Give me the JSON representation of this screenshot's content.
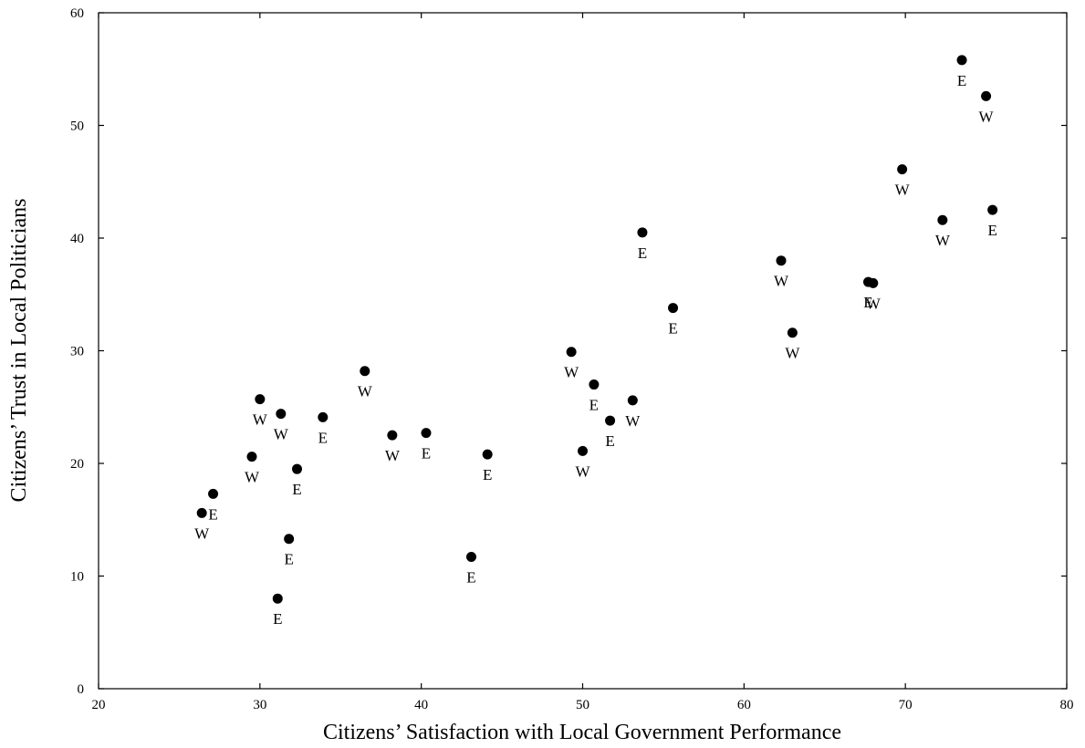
{
  "chart_data": {
    "type": "scatter",
    "title": "",
    "xlabel": "Citizens’ Satisfaction with Local Government Performance",
    "ylabel": "Citizens’ Trust in Local Politicians",
    "xlim": [
      20,
      80
    ],
    "ylim": [
      0,
      60
    ],
    "xticks": [
      "20",
      "30",
      "40",
      "50",
      "60",
      "70",
      "80"
    ],
    "yticks": [
      "0",
      "10",
      "20",
      "30",
      "40",
      "50",
      "60"
    ],
    "grid": false,
    "marker_color": "#000000",
    "points": [
      {
        "x": 26.4,
        "y": 15.6,
        "label": "W"
      },
      {
        "x": 27.1,
        "y": 17.3,
        "label": "E"
      },
      {
        "x": 29.5,
        "y": 20.6,
        "label": "W"
      },
      {
        "x": 30.0,
        "y": 25.7,
        "label": "W"
      },
      {
        "x": 31.1,
        "y": 8.0,
        "label": "E"
      },
      {
        "x": 31.3,
        "y": 24.4,
        "label": "W"
      },
      {
        "x": 31.8,
        "y": 13.3,
        "label": "E"
      },
      {
        "x": 32.3,
        "y": 19.5,
        "label": "E"
      },
      {
        "x": 33.9,
        "y": 24.1,
        "label": "E"
      },
      {
        "x": 36.5,
        "y": 28.2,
        "label": "W"
      },
      {
        "x": 38.2,
        "y": 22.5,
        "label": "W"
      },
      {
        "x": 40.3,
        "y": 22.7,
        "label": "E"
      },
      {
        "x": 43.1,
        "y": 11.7,
        "label": "E"
      },
      {
        "x": 44.1,
        "y": 20.8,
        "label": "E"
      },
      {
        "x": 49.3,
        "y": 29.9,
        "label": "W"
      },
      {
        "x": 50.0,
        "y": 21.1,
        "label": "W"
      },
      {
        "x": 50.7,
        "y": 27.0,
        "label": "E"
      },
      {
        "x": 51.7,
        "y": 23.8,
        "label": "E"
      },
      {
        "x": 53.1,
        "y": 25.6,
        "label": "W"
      },
      {
        "x": 53.7,
        "y": 40.5,
        "label": "E"
      },
      {
        "x": 55.6,
        "y": 33.8,
        "label": "E"
      },
      {
        "x": 62.3,
        "y": 38.0,
        "label": "W"
      },
      {
        "x": 63.0,
        "y": 31.6,
        "label": "W"
      },
      {
        "x": 67.7,
        "y": 36.1,
        "label": "E"
      },
      {
        "x": 68.0,
        "y": 36.0,
        "label": "W"
      },
      {
        "x": 69.8,
        "y": 46.1,
        "label": "W"
      },
      {
        "x": 72.3,
        "y": 41.6,
        "label": "W"
      },
      {
        "x": 73.5,
        "y": 55.8,
        "label": "E"
      },
      {
        "x": 75.0,
        "y": 52.6,
        "label": "W"
      },
      {
        "x": 75.4,
        "y": 42.5,
        "label": "E"
      }
    ]
  }
}
